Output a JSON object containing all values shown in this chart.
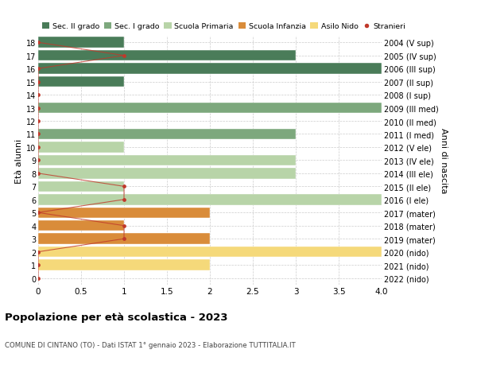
{
  "ages": [
    18,
    17,
    16,
    15,
    14,
    13,
    12,
    11,
    10,
    9,
    8,
    7,
    6,
    5,
    4,
    3,
    2,
    1,
    0
  ],
  "years": [
    "2004 (V sup)",
    "2005 (IV sup)",
    "2006 (III sup)",
    "2007 (II sup)",
    "2008 (I sup)",
    "2009 (III med)",
    "2010 (II med)",
    "2011 (I med)",
    "2012 (V ele)",
    "2013 (IV ele)",
    "2014 (III ele)",
    "2015 (II ele)",
    "2016 (I ele)",
    "2017 (mater)",
    "2018 (mater)",
    "2019 (mater)",
    "2020 (nido)",
    "2021 (nido)",
    "2022 (nido)"
  ],
  "bar_values": [
    1,
    3,
    4,
    1,
    0,
    4,
    0,
    3,
    1,
    3,
    3,
    1,
    4,
    2,
    1,
    2,
    4,
    2,
    0
  ],
  "bar_colors": [
    "#4a7c59",
    "#4a7c59",
    "#4a7c59",
    "#4a7c59",
    "#4a7c59",
    "#7da87d",
    "#7da87d",
    "#7da87d",
    "#b8d4a8",
    "#b8d4a8",
    "#b8d4a8",
    "#b8d4a8",
    "#b8d4a8",
    "#d98c3a",
    "#d98c3a",
    "#d98c3a",
    "#f5d97a",
    "#f5d97a",
    "#f5d97a"
  ],
  "stranieri_values": [
    0,
    1,
    0,
    0,
    0,
    0,
    0,
    0,
    0,
    0,
    0,
    1,
    1,
    0,
    1,
    1,
    0,
    0,
    0
  ],
  "stranieri_color": "#c0392b",
  "legend_labels": [
    "Sec. II grado",
    "Sec. I grado",
    "Scuola Primaria",
    "Scuola Infanzia",
    "Asilo Nido",
    "Stranieri"
  ],
  "legend_colors": [
    "#4a7c59",
    "#7da87d",
    "#b8d4a8",
    "#d98c3a",
    "#f5d97a",
    "#c0392b"
  ],
  "title": "Popolazione per età scolastica - 2023",
  "subtitle": "COMUNE DI CINTANO (TO) - Dati ISTAT 1° gennaio 2023 - Elaborazione TUTTITALIA.IT",
  "ylabel_left": "Età alunni",
  "ylabel_right": "Anni di nascita",
  "xlim": [
    0,
    4.0
  ],
  "ylim": [
    -0.5,
    18.5
  ],
  "xticks": [
    0,
    0.5,
    1.0,
    1.5,
    2.0,
    2.5,
    3.0,
    3.5,
    4.0
  ],
  "xtick_labels": [
    "0",
    "0.5",
    "1",
    "1.5",
    "2",
    "2.5",
    "3",
    "3.5",
    "4.0"
  ]
}
